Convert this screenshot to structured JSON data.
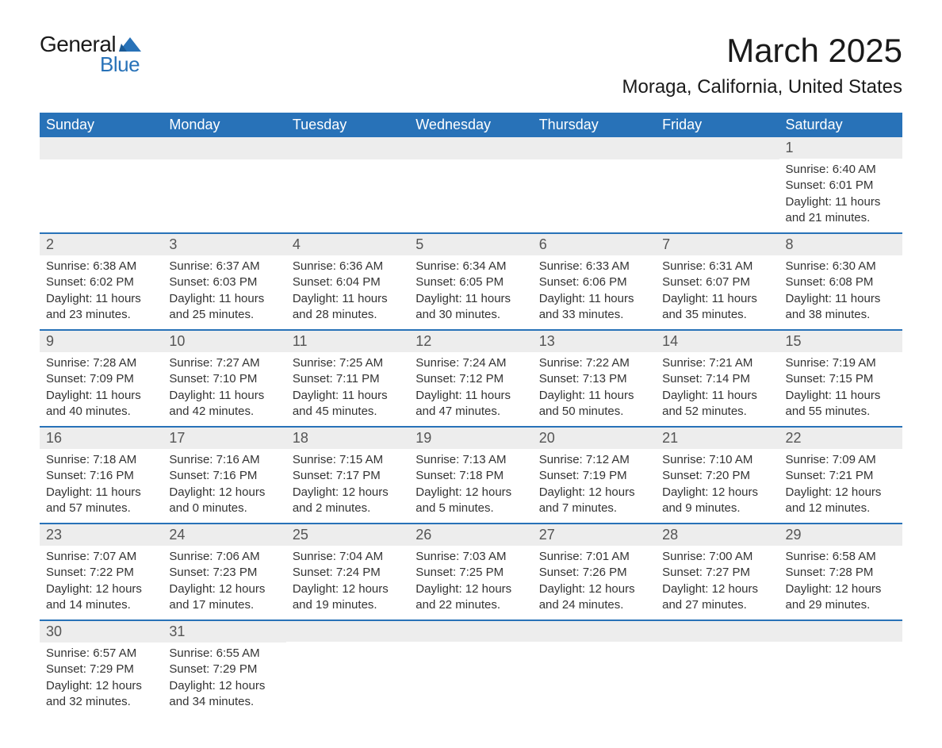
{
  "brand": {
    "general": "General",
    "blue": "Blue"
  },
  "title": "March 2025",
  "location": "Moraga, California, United States",
  "colors": {
    "accent": "#2872b8",
    "header_bg": "#2872b8",
    "header_text": "#ffffff",
    "daynum_bg": "#ededed",
    "daynum_text": "#555555",
    "body_text": "#333333",
    "background": "#ffffff"
  },
  "typography": {
    "title_size": 42,
    "location_size": 24,
    "header_size": 18,
    "daynum_size": 18,
    "content_size": 15,
    "logo_size": 28
  },
  "day_headers": [
    "Sunday",
    "Monday",
    "Tuesday",
    "Wednesday",
    "Thursday",
    "Friday",
    "Saturday"
  ],
  "weeks": [
    [
      null,
      null,
      null,
      null,
      null,
      null,
      {
        "n": "1",
        "sunrise": "Sunrise: 6:40 AM",
        "sunset": "Sunset: 6:01 PM",
        "daylight": "Daylight: 11 hours and 21 minutes."
      }
    ],
    [
      {
        "n": "2",
        "sunrise": "Sunrise: 6:38 AM",
        "sunset": "Sunset: 6:02 PM",
        "daylight": "Daylight: 11 hours and 23 minutes."
      },
      {
        "n": "3",
        "sunrise": "Sunrise: 6:37 AM",
        "sunset": "Sunset: 6:03 PM",
        "daylight": "Daylight: 11 hours and 25 minutes."
      },
      {
        "n": "4",
        "sunrise": "Sunrise: 6:36 AM",
        "sunset": "Sunset: 6:04 PM",
        "daylight": "Daylight: 11 hours and 28 minutes."
      },
      {
        "n": "5",
        "sunrise": "Sunrise: 6:34 AM",
        "sunset": "Sunset: 6:05 PM",
        "daylight": "Daylight: 11 hours and 30 minutes."
      },
      {
        "n": "6",
        "sunrise": "Sunrise: 6:33 AM",
        "sunset": "Sunset: 6:06 PM",
        "daylight": "Daylight: 11 hours and 33 minutes."
      },
      {
        "n": "7",
        "sunrise": "Sunrise: 6:31 AM",
        "sunset": "Sunset: 6:07 PM",
        "daylight": "Daylight: 11 hours and 35 minutes."
      },
      {
        "n": "8",
        "sunrise": "Sunrise: 6:30 AM",
        "sunset": "Sunset: 6:08 PM",
        "daylight": "Daylight: 11 hours and 38 minutes."
      }
    ],
    [
      {
        "n": "9",
        "sunrise": "Sunrise: 7:28 AM",
        "sunset": "Sunset: 7:09 PM",
        "daylight": "Daylight: 11 hours and 40 minutes."
      },
      {
        "n": "10",
        "sunrise": "Sunrise: 7:27 AM",
        "sunset": "Sunset: 7:10 PM",
        "daylight": "Daylight: 11 hours and 42 minutes."
      },
      {
        "n": "11",
        "sunrise": "Sunrise: 7:25 AM",
        "sunset": "Sunset: 7:11 PM",
        "daylight": "Daylight: 11 hours and 45 minutes."
      },
      {
        "n": "12",
        "sunrise": "Sunrise: 7:24 AM",
        "sunset": "Sunset: 7:12 PM",
        "daylight": "Daylight: 11 hours and 47 minutes."
      },
      {
        "n": "13",
        "sunrise": "Sunrise: 7:22 AM",
        "sunset": "Sunset: 7:13 PM",
        "daylight": "Daylight: 11 hours and 50 minutes."
      },
      {
        "n": "14",
        "sunrise": "Sunrise: 7:21 AM",
        "sunset": "Sunset: 7:14 PM",
        "daylight": "Daylight: 11 hours and 52 minutes."
      },
      {
        "n": "15",
        "sunrise": "Sunrise: 7:19 AM",
        "sunset": "Sunset: 7:15 PM",
        "daylight": "Daylight: 11 hours and 55 minutes."
      }
    ],
    [
      {
        "n": "16",
        "sunrise": "Sunrise: 7:18 AM",
        "sunset": "Sunset: 7:16 PM",
        "daylight": "Daylight: 11 hours and 57 minutes."
      },
      {
        "n": "17",
        "sunrise": "Sunrise: 7:16 AM",
        "sunset": "Sunset: 7:16 PM",
        "daylight": "Daylight: 12 hours and 0 minutes."
      },
      {
        "n": "18",
        "sunrise": "Sunrise: 7:15 AM",
        "sunset": "Sunset: 7:17 PM",
        "daylight": "Daylight: 12 hours and 2 minutes."
      },
      {
        "n": "19",
        "sunrise": "Sunrise: 7:13 AM",
        "sunset": "Sunset: 7:18 PM",
        "daylight": "Daylight: 12 hours and 5 minutes."
      },
      {
        "n": "20",
        "sunrise": "Sunrise: 7:12 AM",
        "sunset": "Sunset: 7:19 PM",
        "daylight": "Daylight: 12 hours and 7 minutes."
      },
      {
        "n": "21",
        "sunrise": "Sunrise: 7:10 AM",
        "sunset": "Sunset: 7:20 PM",
        "daylight": "Daylight: 12 hours and 9 minutes."
      },
      {
        "n": "22",
        "sunrise": "Sunrise: 7:09 AM",
        "sunset": "Sunset: 7:21 PM",
        "daylight": "Daylight: 12 hours and 12 minutes."
      }
    ],
    [
      {
        "n": "23",
        "sunrise": "Sunrise: 7:07 AM",
        "sunset": "Sunset: 7:22 PM",
        "daylight": "Daylight: 12 hours and 14 minutes."
      },
      {
        "n": "24",
        "sunrise": "Sunrise: 7:06 AM",
        "sunset": "Sunset: 7:23 PM",
        "daylight": "Daylight: 12 hours and 17 minutes."
      },
      {
        "n": "25",
        "sunrise": "Sunrise: 7:04 AM",
        "sunset": "Sunset: 7:24 PM",
        "daylight": "Daylight: 12 hours and 19 minutes."
      },
      {
        "n": "26",
        "sunrise": "Sunrise: 7:03 AM",
        "sunset": "Sunset: 7:25 PM",
        "daylight": "Daylight: 12 hours and 22 minutes."
      },
      {
        "n": "27",
        "sunrise": "Sunrise: 7:01 AM",
        "sunset": "Sunset: 7:26 PM",
        "daylight": "Daylight: 12 hours and 24 minutes."
      },
      {
        "n": "28",
        "sunrise": "Sunrise: 7:00 AM",
        "sunset": "Sunset: 7:27 PM",
        "daylight": "Daylight: 12 hours and 27 minutes."
      },
      {
        "n": "29",
        "sunrise": "Sunrise: 6:58 AM",
        "sunset": "Sunset: 7:28 PM",
        "daylight": "Daylight: 12 hours and 29 minutes."
      }
    ],
    [
      {
        "n": "30",
        "sunrise": "Sunrise: 6:57 AM",
        "sunset": "Sunset: 7:29 PM",
        "daylight": "Daylight: 12 hours and 32 minutes."
      },
      {
        "n": "31",
        "sunrise": "Sunrise: 6:55 AM",
        "sunset": "Sunset: 7:29 PM",
        "daylight": "Daylight: 12 hours and 34 minutes."
      },
      null,
      null,
      null,
      null,
      null
    ]
  ]
}
